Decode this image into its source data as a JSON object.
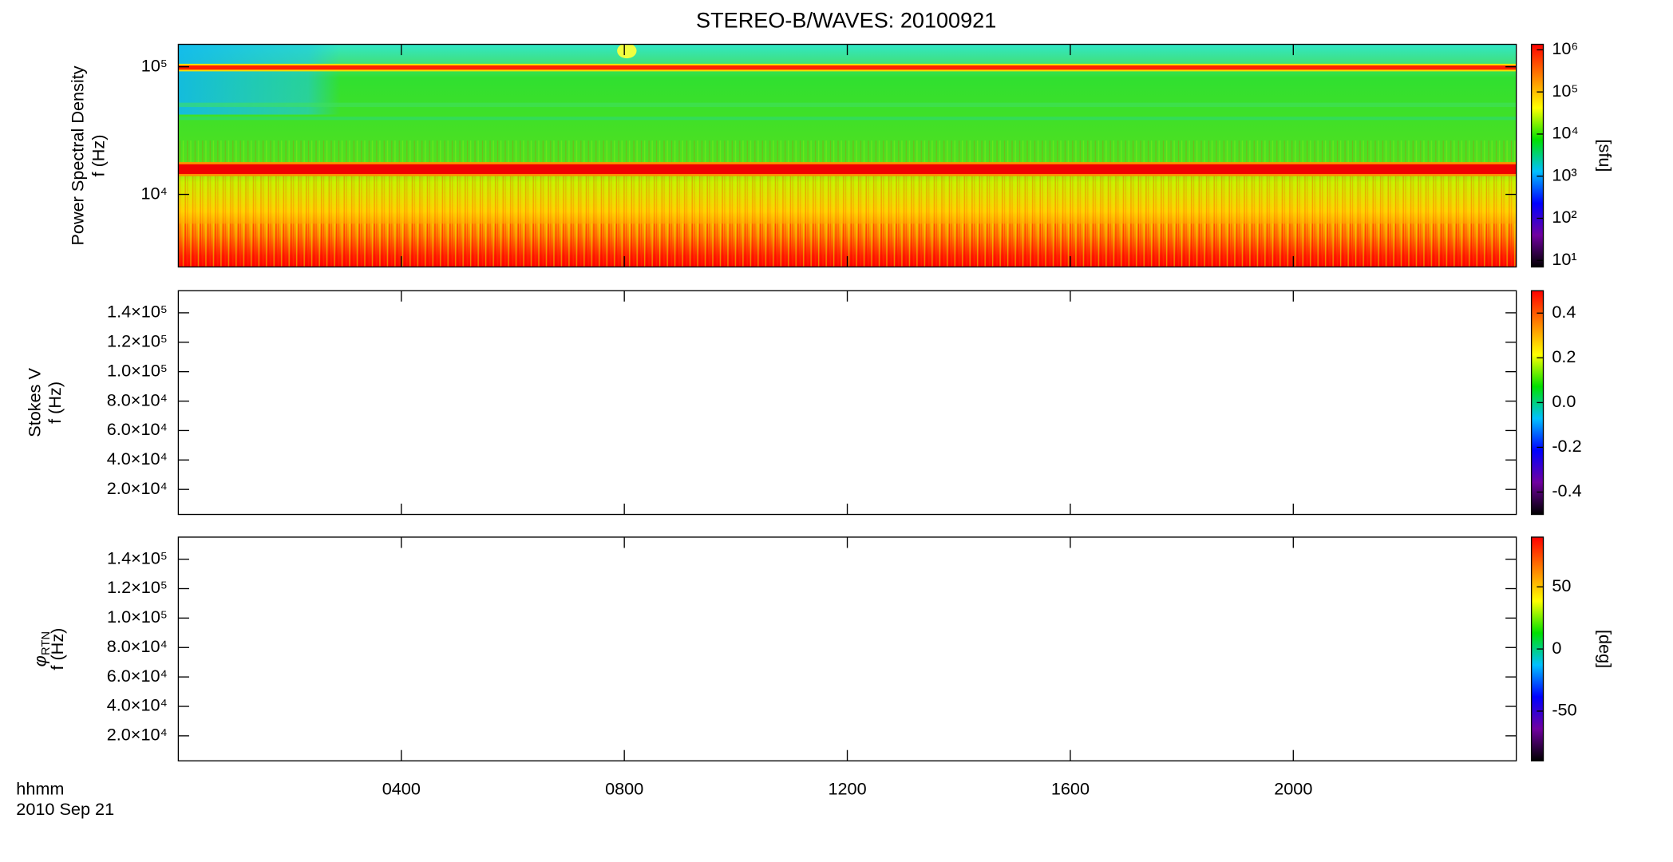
{
  "chart_data": [
    {
      "type": "spectrogram",
      "title": "STEREO-B/WAVES: 20100921",
      "ylabel": "Power Spectral Density",
      "yunit": "f (Hz)",
      "yscale": "log",
      "ylim": [
        2700,
        150000
      ],
      "yticks": [
        {
          "value": 10000,
          "label": "10⁴"
        },
        {
          "value": 100000,
          "label": "10⁵"
        }
      ],
      "xlim": [
        0,
        24
      ],
      "xticks": [
        4,
        8,
        12,
        16,
        20
      ],
      "colorbar": {
        "scale": "log",
        "lim": [
          7,
          1350000
        ],
        "label": "[sfu]",
        "colors": [
          "#000000",
          "#7000a0",
          "#0000ff",
          "#00c0ff",
          "#00e000",
          "#ffff00",
          "#ff8000",
          "#ff0000"
        ],
        "ticks": [
          {
            "value": 10,
            "label": "10¹"
          },
          {
            "value": 100,
            "label": "10²"
          },
          {
            "value": 1000,
            "label": "10³"
          },
          {
            "value": 10000,
            "label": "10⁴"
          },
          {
            "value": 100000,
            "label": "10⁵"
          },
          {
            "value": 1000000,
            "label": "10⁶"
          }
        ]
      }
    },
    {
      "type": "spectrogram",
      "ylabel": "Stokes V",
      "yunit": "f (Hz)",
      "yscale": "linear",
      "ylim": [
        3000,
        155000
      ],
      "yticks": [
        {
          "value": 20000,
          "label": "2.0×10⁴"
        },
        {
          "value": 40000,
          "label": "4.0×10⁴"
        },
        {
          "value": 60000,
          "label": "6.0×10⁴"
        },
        {
          "value": 80000,
          "label": "8.0×10⁴"
        },
        {
          "value": 100000,
          "label": "1.0×10⁵"
        },
        {
          "value": 120000,
          "label": "1.2×10⁵"
        },
        {
          "value": 140000,
          "label": "1.4×10⁵"
        }
      ],
      "xlim": [
        0,
        24
      ],
      "xticks": [
        4,
        8,
        12,
        16,
        20
      ],
      "colorbar": {
        "scale": "linear",
        "lim": [
          -0.5,
          0.5
        ],
        "colors": [
          "#000000",
          "#7000a0",
          "#0000ff",
          "#00c0ff",
          "#00e000",
          "#ffff00",
          "#ff8000",
          "#ff0000"
        ],
        "ticks": [
          -0.4,
          -0.2,
          {
            "value": 0,
            "label": "0.0"
          },
          0.2,
          0.4
        ]
      }
    },
    {
      "type": "spectrogram",
      "ylabel": "φ",
      "ylabel_subscript": "RTN",
      "yunit": "f (Hz)",
      "yscale": "linear",
      "ylim": [
        3000,
        155000
      ],
      "yticks": [
        {
          "value": 20000,
          "label": "2.0×10⁴"
        },
        {
          "value": 40000,
          "label": "4.0×10⁴"
        },
        {
          "value": 60000,
          "label": "6.0×10⁴"
        },
        {
          "value": 80000,
          "label": "8.0×10⁴"
        },
        {
          "value": 100000,
          "label": "1.0×10⁵"
        },
        {
          "value": 120000,
          "label": "1.2×10⁵"
        },
        {
          "value": 140000,
          "label": "1.4×10⁵"
        }
      ],
      "xlim": [
        0,
        24
      ],
      "xticks": [
        {
          "value": 4,
          "label": "0400"
        },
        {
          "value": 8,
          "label": "0800"
        },
        {
          "value": 12,
          "label": "1200"
        },
        {
          "value": 16,
          "label": "1600"
        },
        {
          "value": 20,
          "label": "2000"
        }
      ],
      "xlabel": "hhmm",
      "date": "2010 Sep 21",
      "colorbar": {
        "scale": "linear",
        "lim": [
          -90,
          90
        ],
        "label": "[deg]",
        "colors": [
          "#000000",
          "#7000a0",
          "#0000ff",
          "#00c0ff",
          "#00e000",
          "#ffff00",
          "#ff8000",
          "#ff0000"
        ],
        "ticks": [
          -50,
          0,
          50
        ]
      }
    }
  ]
}
